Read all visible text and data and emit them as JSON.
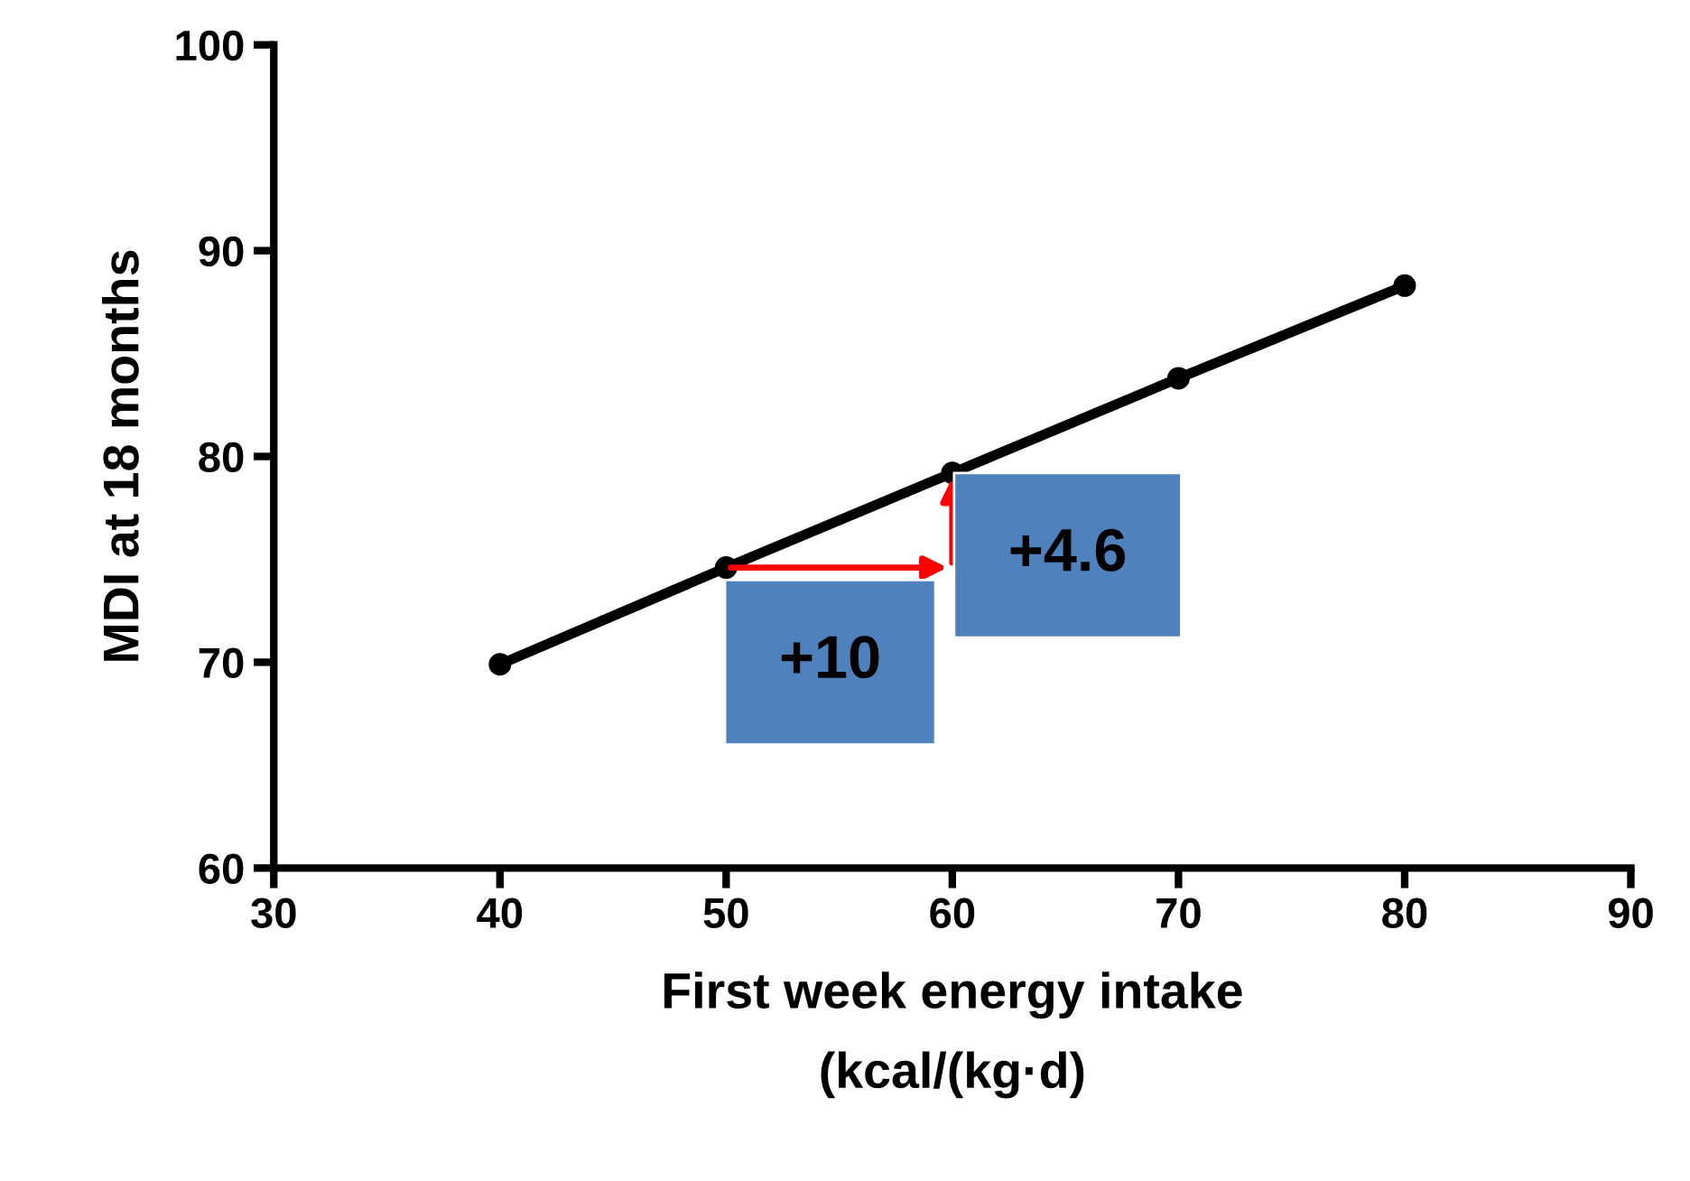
{
  "chart_data": {
    "type": "line",
    "xlabel": "First week energy intake\n(kcal/(kg·d)",
    "ylabel": "MDI at 18 months",
    "x": [
      40,
      50,
      60,
      70,
      80
    ],
    "series": [
      {
        "color": "#000000",
        "values": [
          69.9,
          74.6,
          79.2,
          83.8,
          88.3
        ]
      }
    ],
    "xlim": [
      30,
      90
    ],
    "xticks": [
      30,
      40,
      50,
      60,
      70,
      80,
      90
    ],
    "ylim": [
      60,
      100
    ],
    "yticks": [
      60,
      70,
      80,
      90,
      100
    ],
    "marker": "circle",
    "line_style": "solid",
    "grid": false,
    "annotations": [
      "+10",
      "+4.6"
    ]
  }
}
